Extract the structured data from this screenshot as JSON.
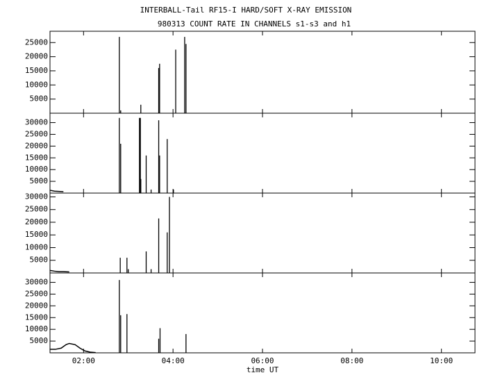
{
  "chart_data": [
    {
      "type": "bar",
      "title": "INTERBALL-Tail RF15-I HARD/SOFT X-RAY EMISSION",
      "subtitle": "980313  COUNT RATE IN CHANNELS s1-s3 and h1",
      "xlim": [
        1.25,
        10.75
      ],
      "xticks": [
        {
          "value": 2,
          "label": "02:00"
        },
        {
          "value": 4,
          "label": "04:00"
        },
        {
          "value": 6,
          "label": "06:00"
        },
        {
          "value": 8,
          "label": "08:00"
        },
        {
          "value": 10,
          "label": "10:00"
        }
      ],
      "ylim": [
        0,
        29000
      ],
      "yticks": [
        5000,
        10000,
        15000,
        20000,
        25000
      ],
      "x": [
        2.8,
        2.83,
        3.28,
        3.68,
        3.7,
        4.06,
        4.26,
        4.29
      ],
      "values": [
        27000,
        1000,
        3000,
        16000,
        17500,
        22500,
        27000,
        24500
      ]
    },
    {
      "type": "bar",
      "xlim": [
        1.25,
        10.75
      ],
      "xticks": [
        {
          "value": 2,
          "label": "02:00"
        },
        {
          "value": 4,
          "label": "04:00"
        },
        {
          "value": 6,
          "label": "06:00"
        },
        {
          "value": 8,
          "label": "08:00"
        },
        {
          "value": 10,
          "label": "10:00"
        }
      ],
      "ylim": [
        0,
        34000
      ],
      "yticks": [
        5000,
        10000,
        15000,
        20000,
        25000,
        30000
      ],
      "x": [
        2.8,
        2.83,
        3.25,
        3.27,
        3.28,
        3.4,
        3.51,
        3.68,
        3.7,
        3.87,
        4.01
      ],
      "values": [
        32000,
        21000,
        32000,
        32000,
        6000,
        16000,
        1500,
        31000,
        16000,
        23000,
        1500
      ],
      "curve": {
        "x": [
          1.25,
          1.35,
          1.45,
          1.55
        ],
        "values": [
          1200,
          800,
          700,
          600
        ]
      }
    },
    {
      "type": "bar",
      "xlim": [
        1.25,
        10.75
      ],
      "xticks": [
        {
          "value": 2,
          "label": "02:00"
        },
        {
          "value": 4,
          "label": "04:00"
        },
        {
          "value": 6,
          "label": "06:00"
        },
        {
          "value": 8,
          "label": "08:00"
        },
        {
          "value": 10,
          "label": "10:00"
        }
      ],
      "ylim": [
        0,
        31500
      ],
      "yticks": [
        5000,
        10000,
        15000,
        20000,
        25000,
        30000
      ],
      "x": [
        2.82,
        2.97,
        3.0,
        3.4,
        3.51,
        3.68,
        3.87,
        3.92
      ],
      "values": [
        6000,
        6000,
        1500,
        8500,
        1500,
        21500,
        16000,
        30000
      ],
      "curve": {
        "x": [
          1.25,
          1.35,
          1.45,
          1.55,
          1.68
        ],
        "values": [
          1000,
          700,
          500,
          500,
          400
        ]
      }
    },
    {
      "type": "bar",
      "xlabel": "time UT",
      "xlim": [
        1.25,
        10.75
      ],
      "xticks": [
        {
          "value": 2,
          "label": "02:00"
        },
        {
          "value": 4,
          "label": "04:00"
        },
        {
          "value": 6,
          "label": "06:00"
        },
        {
          "value": 8,
          "label": "08:00"
        },
        {
          "value": 10,
          "label": "10:00"
        }
      ],
      "ylim": [
        0,
        34000
      ],
      "yticks": [
        5000,
        10000,
        15000,
        20000,
        25000,
        30000
      ],
      "x": [
        2.8,
        2.83,
        2.97,
        3.68,
        3.71,
        4.29
      ],
      "values": [
        31000,
        16000,
        16500,
        6000,
        10500,
        8000
      ],
      "curve": {
        "x": [
          1.25,
          1.37,
          1.5,
          1.61,
          1.68,
          1.81,
          1.92,
          2.03,
          2.15,
          2.27
        ],
        "values": [
          1500,
          1500,
          2000,
          3500,
          4000,
          3500,
          2000,
          800,
          300,
          100
        ]
      }
    }
  ]
}
